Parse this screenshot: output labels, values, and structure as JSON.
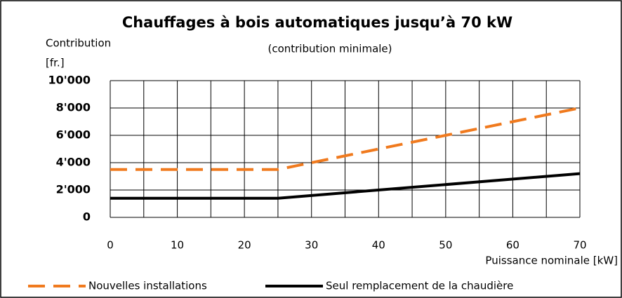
{
  "chart_data": {
    "type": "line",
    "title": "Chauffages à bois automatiques jusqu’à 70 kW",
    "subtitle": "(contribution minimale)",
    "y_label": [
      "Contribution",
      "[fr.]"
    ],
    "x_label": "Puissance nominale [kW]",
    "series": [
      {
        "name": "Nouvelles installations",
        "color": "#f07a1e",
        "dashed": true,
        "x": [
          0,
          25,
          50,
          70
        ],
        "values": [
          3500,
          3500,
          6000,
          8000
        ]
      },
      {
        "name": "Seul remplacement de la chaudière",
        "color": "#000000",
        "dashed": false,
        "x": [
          0,
          25,
          70
        ],
        "values": [
          1400,
          1400,
          3200
        ]
      }
    ],
    "xlim": [
      0,
      70
    ],
    "xticks": [
      0,
      10,
      20,
      30,
      40,
      50,
      60,
      70
    ],
    "xgrid": [
      0,
      5,
      10,
      15,
      20,
      25,
      30,
      35,
      40,
      45,
      50,
      55,
      60,
      65,
      70
    ],
    "ylim": [
      0,
      10000
    ],
    "yticks": [
      {
        "value": 0,
        "label": "0"
      },
      {
        "value": 2000,
        "label": "2'000"
      },
      {
        "value": 4000,
        "label": "4'000"
      },
      {
        "value": 6000,
        "label": "6'000"
      },
      {
        "value": 8000,
        "label": "8'000"
      },
      {
        "value": 10000,
        "label": "10'000"
      }
    ],
    "grid": true
  }
}
